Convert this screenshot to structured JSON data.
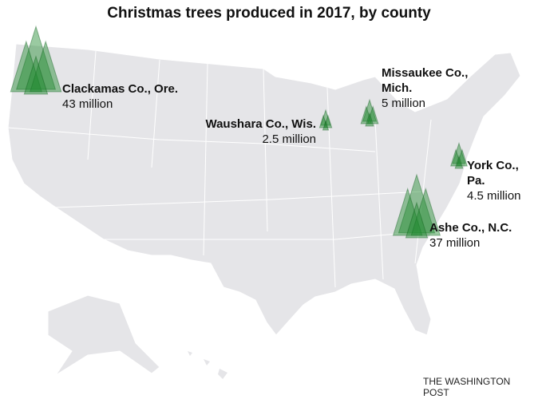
{
  "title": "Christmas trees produced in 2017, by county",
  "counties": [
    {
      "name": "Clackamas Co., Ore.",
      "value": 43,
      "value_label": "43 million"
    },
    {
      "name": "Waushara Co., Wis.",
      "value": 2.5,
      "value_label": "2.5 million"
    },
    {
      "name": "Missaukee Co., Mich.",
      "value": 5,
      "value_label": "5 million"
    },
    {
      "name": "York Co., Pa.",
      "value": 4.5,
      "value_label": "4.5 million"
    },
    {
      "name": "Ashe Co., N.C.",
      "value": 37,
      "value_label": "37 million"
    }
  ],
  "credit": "THE WASHINGTON POST"
}
